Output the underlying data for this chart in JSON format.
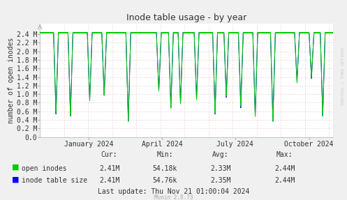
{
  "title": "Inode table usage - by year",
  "ylabel": "number of open inodes",
  "background_color": "#f0f0f0",
  "plot_bg_color": "#ffffff",
  "grid_color_h": "#e8b8b8",
  "grid_color_v": "#e8b8b8",
  "ylim": [
    0.0,
    2640000.0
  ],
  "yticks": [
    0.0,
    200000.0,
    400000.0,
    600000.0,
    800000.0,
    1000000.0,
    1200000.0,
    1400000.0,
    1600000.0,
    1800000.0,
    2000000.0,
    2200000.0,
    2400000.0
  ],
  "ytick_labels": [
    "0.0",
    "0.2 M",
    "0.4 M",
    "0.6 M",
    "0.8 M",
    "1.0 M",
    "1.2 M",
    "1.4 M",
    "1.6 M",
    "1.8 M",
    "2.0 M",
    "2.2 M",
    "2.4 M"
  ],
  "open_inodes_color": "#00cc00",
  "inode_table_color": "#0000ff",
  "legend_labels": [
    "open inodes",
    "inode table size"
  ],
  "stats_open": [
    "2.41M",
    "54.18k",
    "2.33M",
    "2.44M"
  ],
  "stats_table": [
    "2.41M",
    "54.76k",
    "2.35M",
    "2.44M"
  ],
  "last_update": "Last update: Thu Nov 21 01:00:04 2024",
  "munin_version": "Munin 2.0.73",
  "watermark": "RRDTOOL / TOBI OETIKER",
  "xlim": [
    0,
    365
  ],
  "xtick_positions": [
    61,
    152,
    243,
    335
  ],
  "xtick_labels": [
    "January 2024",
    "April 2024",
    "July 2024",
    "October 2024"
  ],
  "dip_days": [
    20,
    38,
    62,
    80,
    110,
    148,
    163,
    175,
    195,
    218,
    232,
    250,
    268,
    290,
    320,
    338,
    352
  ],
  "dip_depths": [
    0.78,
    0.8,
    0.65,
    0.6,
    0.85,
    0.56,
    0.72,
    0.68,
    0.64,
    0.78,
    0.62,
    0.72,
    0.8,
    0.85,
    0.46,
    0.44,
    0.8
  ],
  "dip_widths": [
    3,
    3,
    3,
    3,
    3,
    3,
    3,
    3,
    3,
    3,
    3,
    3,
    3,
    3,
    3,
    3,
    3
  ],
  "base_value": 2440000.0
}
